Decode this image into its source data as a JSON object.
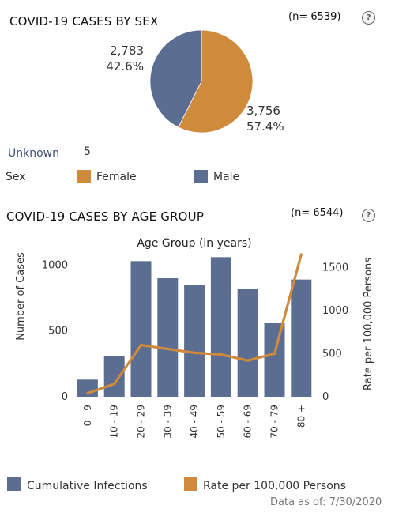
{
  "sex_section": {
    "title": "COVID-19 CASES BY SEX",
    "n_label": "(n= 6539)",
    "help_icon": "question-circle-icon",
    "slice_labels": [
      {
        "count": "2,783",
        "percent": "42.6%"
      },
      {
        "count": "3,756",
        "percent": "57.4%"
      }
    ],
    "unknown_label": "Unknown",
    "unknown_value": "5",
    "legend_label": "Sex",
    "legend": [
      {
        "name": "Female",
        "color": "#D08A3C"
      },
      {
        "name": "Male",
        "color": "#5B6E92"
      }
    ]
  },
  "age_section": {
    "title": "COVID-19 CASES BY AGE GROUP",
    "n_label": "(n= 6544)",
    "help_icon": "question-circle-icon",
    "legend": [
      {
        "name": "Cumulative Infections",
        "color": "#5B6E92"
      },
      {
        "name": "Rate per 100,000 Persons",
        "color": "#D08A3C"
      }
    ]
  },
  "footer": {
    "data_as_of": "Data as of:  7/30/2020"
  },
  "chart_data": [
    {
      "type": "pie",
      "labels": [
        "Male",
        "Female"
      ],
      "values": [
        2783,
        3756
      ],
      "percents": [
        42.6,
        57.4
      ],
      "colors": [
        "#5B6E92",
        "#D08A3C"
      ]
    },
    {
      "type": "bar",
      "title": "Age Group (in years)",
      "categories": [
        "0 - 9",
        "10 - 19",
        "20 - 29",
        "30 - 39",
        "40 - 49",
        "50 - 59",
        "60 - 69",
        "70 - 79",
        "80 +"
      ],
      "series": [
        {
          "name": "Cumulative Infections",
          "type": "bar",
          "axis": "left",
          "color": "#5B6E92",
          "values": [
            130,
            310,
            1030,
            900,
            850,
            1060,
            820,
            560,
            890
          ]
        },
        {
          "name": "Rate per 100,000 Persons",
          "type": "line",
          "axis": "right",
          "color": "#D08A3C",
          "values": [
            40,
            150,
            600,
            555,
            510,
            490,
            420,
            500,
            1650
          ]
        }
      ],
      "ylabel": "Number of Cases",
      "ylim": [
        0,
        1080
      ],
      "yticks": [
        0,
        500,
        1000
      ],
      "y2label": "Rate per 100,000 Persons",
      "y2lim": [
        0,
        1650
      ],
      "y2ticks": [
        0,
        500,
        1000,
        1500
      ],
      "grid": false,
      "legend_position": "bottom"
    }
  ]
}
